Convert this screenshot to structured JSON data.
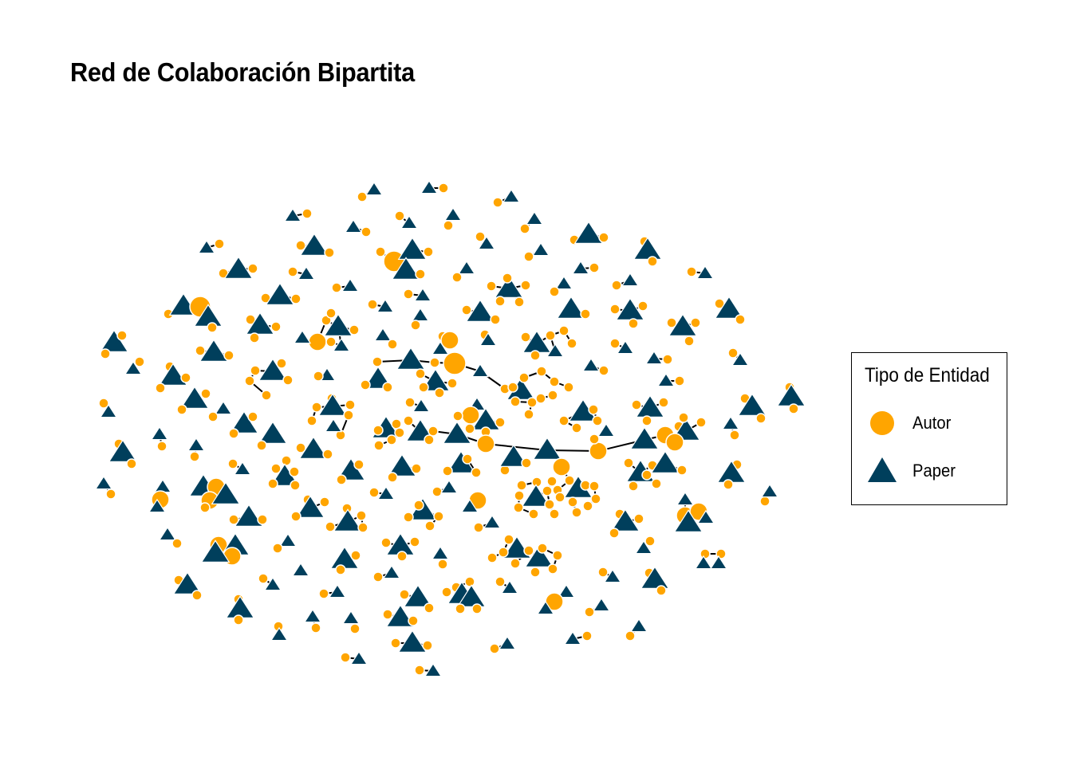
{
  "title": "Red de Colaboración Bipartita",
  "legend": {
    "title": "Tipo de Entidad",
    "items": [
      {
        "label": "Autor",
        "shape": "circle",
        "color": "#FFA500"
      },
      {
        "label": "Paper",
        "shape": "triangle",
        "color": "#003F5C"
      }
    ]
  },
  "colors": {
    "author": "#FFA500",
    "paper": "#003F5C",
    "edge": "#000000"
  }
}
